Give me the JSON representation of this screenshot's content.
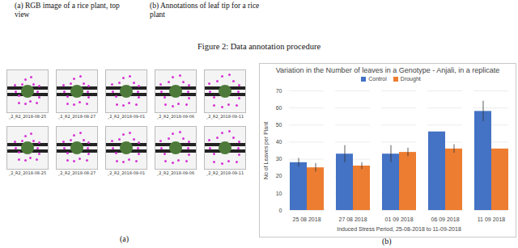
{
  "top_captions": [
    "(a) RGB image of a rice plant, top view",
    "(b) Annotations of leaf tip for a rice plant"
  ],
  "figure_caption": "Figure 2: Data annotation procedure",
  "panel_a": {
    "label": "(a)",
    "thumbnails": [
      [
        "_2_R2_2018-08-25",
        "_2_R2_2018-08-27",
        "_2_R2_2018-09-01",
        "_2_R2_2018-09-06",
        "_2_R2_2018-09-11"
      ],
      [
        "_2_R2_2018-08-25",
        "_2_R2_2018-08-27",
        "_2_R2_2018-09-01",
        "_2_R2_2018-09-06",
        "_2_R2_2018-09-11"
      ]
    ]
  },
  "panel_b_label": "(b)",
  "chart_data": {
    "type": "bar",
    "title": "Variation in the Number of leaves  in a Genotype - Anjali, in a replicate",
    "x_label": "Induced Stress Period, 25-08-2018 to 11-09-2018",
    "y_label": "No of Leaves per Plant",
    "categories": [
      "25 08 2018",
      "27 08 2018",
      "01 09 2018",
      "06 09 2018",
      "11 09 2018"
    ],
    "series": [
      {
        "name": "Control",
        "color": "#4472c4",
        "values": [
          28,
          33,
          33,
          46,
          58
        ],
        "error": [
          2.5,
          5,
          5,
          0,
          6
        ]
      },
      {
        "name": "Drought",
        "color": "#ed7d31",
        "values": [
          25,
          26,
          34,
          36,
          36
        ],
        "error": [
          2.5,
          2,
          2.5,
          2.5,
          0
        ]
      }
    ],
    "ylim": [
      0,
      70
    ],
    "yticks": [
      0,
      10,
      20,
      30,
      40,
      50,
      60,
      70
    ],
    "grid": true,
    "legend": "top"
  }
}
